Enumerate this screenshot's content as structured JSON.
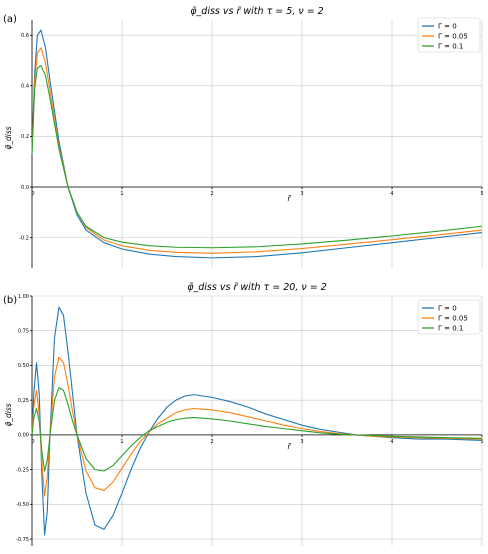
{
  "chart_data": [
    {
      "type": "line",
      "panel_label": "(a)",
      "title": "φ̃_diss vs r̃ with τ = 5, ν = 2",
      "xlabel": "r̃",
      "ylabel": "φ̃_diss",
      "xlim": [
        0,
        5
      ],
      "ylim": [
        -0.32,
        0.66
      ],
      "xticks": [
        "0",
        "1",
        "2",
        "3",
        "4",
        "5"
      ],
      "yticks": [
        {
          "value": 0.6,
          "label": "0.6"
        },
        {
          "value": 0.4,
          "label": "0.4"
        },
        {
          "value": 0.2,
          "label": "0.2"
        },
        {
          "value": 0.0,
          "label": "0.0"
        },
        {
          "value": -0.2,
          "label": "-0.2"
        }
      ],
      "grid": true,
      "legend_position": "top-right",
      "series": [
        {
          "name": "Γ = 0",
          "color": "#1f77b4",
          "x": [
            0,
            0.03,
            0.06,
            0.1,
            0.15,
            0.2,
            0.3,
            0.4,
            0.5,
            0.6,
            0.8,
            1.0,
            1.3,
            1.6,
            2.0,
            2.5,
            3.0,
            3.5,
            4.0,
            4.5,
            5.0
          ],
          "y": [
            0.14,
            0.45,
            0.6,
            0.62,
            0.55,
            0.42,
            0.18,
            0.0,
            -0.11,
            -0.17,
            -0.22,
            -0.245,
            -0.265,
            -0.275,
            -0.28,
            -0.275,
            -0.26,
            -0.24,
            -0.22,
            -0.2,
            -0.18
          ]
        },
        {
          "name": "Γ = 0.05",
          "color": "#ff7f0e",
          "x": [
            0,
            0.03,
            0.06,
            0.1,
            0.15,
            0.2,
            0.3,
            0.4,
            0.5,
            0.6,
            0.8,
            1.0,
            1.3,
            1.6,
            2.0,
            2.5,
            3.0,
            3.5,
            4.0,
            4.5,
            5.0
          ],
          "y": [
            0.14,
            0.42,
            0.53,
            0.55,
            0.49,
            0.38,
            0.16,
            0.0,
            -0.1,
            -0.16,
            -0.21,
            -0.232,
            -0.25,
            -0.258,
            -0.262,
            -0.256,
            -0.243,
            -0.226,
            -0.208,
            -0.19,
            -0.17
          ]
        },
        {
          "name": "Γ = 0.1",
          "color": "#2ca02c",
          "x": [
            0,
            0.03,
            0.06,
            0.1,
            0.15,
            0.2,
            0.3,
            0.4,
            0.5,
            0.6,
            0.8,
            1.0,
            1.3,
            1.6,
            2.0,
            2.5,
            3.0,
            3.5,
            4.0,
            4.5,
            5.0
          ],
          "y": [
            0.13,
            0.39,
            0.47,
            0.48,
            0.44,
            0.35,
            0.15,
            0.0,
            -0.1,
            -0.155,
            -0.2,
            -0.218,
            -0.232,
            -0.238,
            -0.24,
            -0.236,
            -0.225,
            -0.21,
            -0.193,
            -0.175,
            -0.155
          ]
        }
      ]
    },
    {
      "type": "line",
      "panel_label": "(b)",
      "title": "φ̃_diss vs r̃ with τ = 20, ν = 2",
      "xlabel": "r̃",
      "ylabel": "φ̃_diss",
      "xlim": [
        0,
        5
      ],
      "ylim": [
        -0.8,
        1.0
      ],
      "xticks": [
        "0",
        "1",
        "2",
        "3",
        "4",
        "5"
      ],
      "yticks": [
        {
          "value": 1.0,
          "label": "1.00"
        },
        {
          "value": 0.75,
          "label": "0.75"
        },
        {
          "value": 0.5,
          "label": "0.50"
        },
        {
          "value": 0.25,
          "label": "0.25"
        },
        {
          "value": 0.0,
          "label": "0.00"
        },
        {
          "value": -0.25,
          "label": "-0.25"
        },
        {
          "value": -0.5,
          "label": "-0.50"
        },
        {
          "value": -0.75,
          "label": "-0.75"
        }
      ],
      "grid": true,
      "legend_position": "top-right",
      "series": [
        {
          "name": "Γ = 0",
          "color": "#1f77b4",
          "x": [
            0,
            0.02,
            0.05,
            0.08,
            0.11,
            0.14,
            0.17,
            0.2,
            0.25,
            0.3,
            0.35,
            0.4,
            0.45,
            0.5,
            0.6,
            0.7,
            0.8,
            0.9,
            1.0,
            1.1,
            1.2,
            1.3,
            1.4,
            1.5,
            1.6,
            1.7,
            1.8,
            1.9,
            2.0,
            2.2,
            2.4,
            2.6,
            2.8,
            3.0,
            3.2,
            3.4,
            3.6,
            3.8,
            4.0,
            4.3,
            4.6,
            5.0
          ],
          "y": [
            0.0,
            0.3,
            0.52,
            0.3,
            -0.3,
            -0.72,
            -0.55,
            0.0,
            0.7,
            0.92,
            0.86,
            0.6,
            0.3,
            0.0,
            -0.42,
            -0.65,
            -0.68,
            -0.58,
            -0.42,
            -0.25,
            -0.1,
            0.02,
            0.12,
            0.2,
            0.25,
            0.28,
            0.29,
            0.28,
            0.27,
            0.24,
            0.2,
            0.15,
            0.11,
            0.07,
            0.04,
            0.02,
            0.0,
            -0.01,
            -0.02,
            -0.03,
            -0.03,
            -0.04
          ]
        },
        {
          "name": "Γ = 0.05",
          "color": "#ff7f0e",
          "x": [
            0,
            0.02,
            0.05,
            0.08,
            0.11,
            0.14,
            0.17,
            0.2,
            0.25,
            0.3,
            0.35,
            0.4,
            0.45,
            0.5,
            0.6,
            0.7,
            0.8,
            0.9,
            1.0,
            1.1,
            1.2,
            1.3,
            1.4,
            1.5,
            1.6,
            1.7,
            1.8,
            1.9,
            2.0,
            2.2,
            2.4,
            2.6,
            2.8,
            3.0,
            3.2,
            3.4,
            3.6,
            3.8,
            4.0,
            4.3,
            4.6,
            5.0
          ],
          "y": [
            0.0,
            0.2,
            0.32,
            0.15,
            -0.2,
            -0.44,
            -0.3,
            0.0,
            0.42,
            0.56,
            0.52,
            0.36,
            0.17,
            0.0,
            -0.26,
            -0.38,
            -0.4,
            -0.34,
            -0.24,
            -0.14,
            -0.05,
            0.02,
            0.08,
            0.12,
            0.16,
            0.18,
            0.19,
            0.185,
            0.18,
            0.16,
            0.13,
            0.1,
            0.07,
            0.045,
            0.025,
            0.01,
            0.0,
            -0.01,
            -0.015,
            -0.02,
            -0.025,
            -0.03
          ]
        },
        {
          "name": "Γ = 0.1",
          "color": "#2ca02c",
          "x": [
            0,
            0.02,
            0.05,
            0.08,
            0.11,
            0.14,
            0.17,
            0.2,
            0.25,
            0.3,
            0.35,
            0.4,
            0.45,
            0.5,
            0.6,
            0.7,
            0.8,
            0.9,
            1.0,
            1.1,
            1.2,
            1.3,
            1.4,
            1.5,
            1.6,
            1.7,
            1.8,
            1.9,
            2.0,
            2.2,
            2.4,
            2.6,
            2.8,
            3.0,
            3.2,
            3.4,
            3.6,
            3.8,
            4.0,
            4.3,
            4.6,
            5.0
          ],
          "y": [
            0.0,
            0.12,
            0.19,
            0.1,
            -0.12,
            -0.26,
            -0.18,
            0.0,
            0.25,
            0.34,
            0.32,
            0.22,
            0.1,
            0.0,
            -0.17,
            -0.25,
            -0.26,
            -0.22,
            -0.15,
            -0.08,
            -0.02,
            0.03,
            0.06,
            0.09,
            0.11,
            0.12,
            0.125,
            0.12,
            0.115,
            0.1,
            0.08,
            0.06,
            0.045,
            0.03,
            0.015,
            0.005,
            0.0,
            -0.005,
            -0.01,
            -0.015,
            -0.02,
            -0.025
          ]
        }
      ]
    }
  ]
}
